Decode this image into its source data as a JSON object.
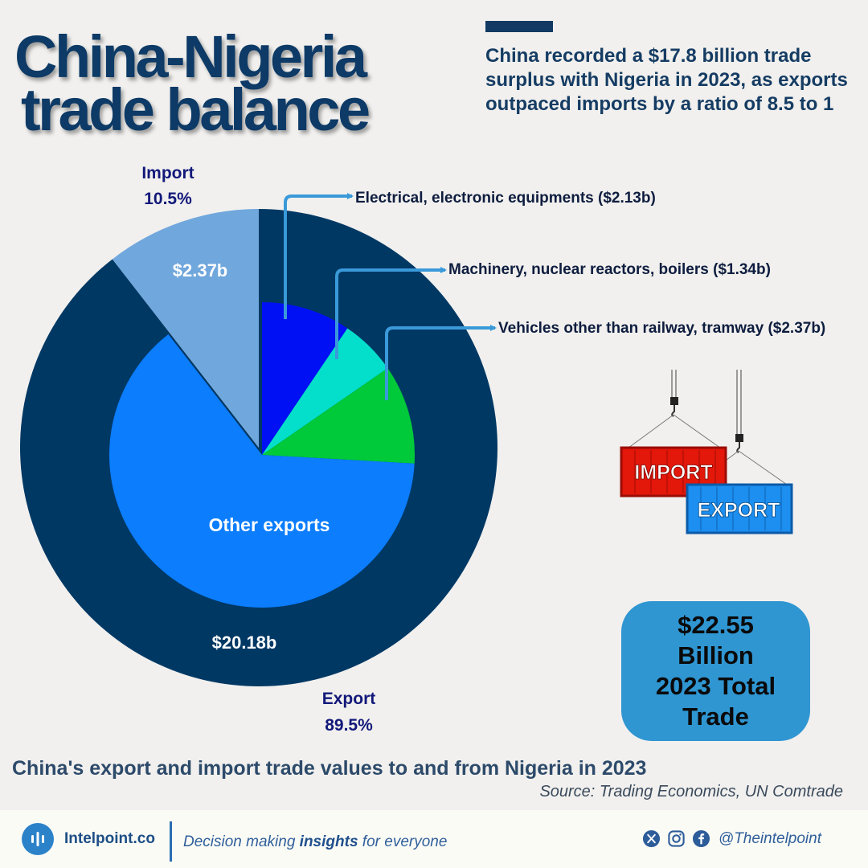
{
  "header": {
    "title_line1": "China-Nigeria",
    "title_line2": "trade balance",
    "subtitle": "China recorded a $17.8 billion trade surplus with Nigeria in 2023, as exports outpaced imports by a ratio of 8.5 to 1"
  },
  "chart_data": {
    "type": "pie",
    "rings": {
      "outer": [
        {
          "label": "Export",
          "percent": "89.5%",
          "value": 20.18,
          "value_label": "$20.18b",
          "color": "#003864"
        },
        {
          "label": "Import",
          "percent": "10.5%",
          "value": 2.37,
          "value_label": "$2.37b",
          "color": "#70a7dc"
        }
      ],
      "inner": [
        {
          "label": "Electrical, electronic equipments ($2.13b)",
          "value": 2.13,
          "color": "#0010f5"
        },
        {
          "label": "Machinery, nuclear reactors, boilers ($1.34b)",
          "value": 1.34,
          "color": "#04dfcc"
        },
        {
          "label": "Vehicles other than railway, tramway ($2.37b)",
          "value": 2.37,
          "color": "#00c93a"
        },
        {
          "label": "Other exports",
          "value": 14.34,
          "color": "#0b7dfd"
        }
      ]
    },
    "outer_labels": {
      "import_name": "Import",
      "import_percent": "10.5%",
      "import_value": "$2.37b",
      "export_name": "Export",
      "export_percent": "89.5%",
      "export_value": "$20.18b"
    },
    "inner_labels": {
      "electrical": "Electrical, electronic equipments ($2.13b)",
      "machinery": "Machinery, nuclear reactors, boilers ($1.34b)",
      "vehicles": "Vehicles other than railway, tramway ($2.37b)",
      "other": "Other exports"
    },
    "colors": {
      "annotation_arrow": "#3a9ad9"
    }
  },
  "illustration": {
    "import_label": "IMPORT",
    "export_label": "EXPORT"
  },
  "total_box": {
    "line1": "$22.55",
    "line2": "Billion",
    "line3": "2023 Total",
    "line4": "Trade"
  },
  "caption": "China's export and import trade values to and from Nigeria in 2023",
  "source": "Source: Trading Economics, UN Comtrade",
  "footer": {
    "brand": "Intelpoint.co",
    "tagline_pre": "Decision making ",
    "tagline_bold": "insights",
    "tagline_post": " for everyone",
    "social_icons": [
      "x-icon",
      "instagram-icon",
      "facebook-icon"
    ],
    "handle": "@Theintelpoint"
  }
}
